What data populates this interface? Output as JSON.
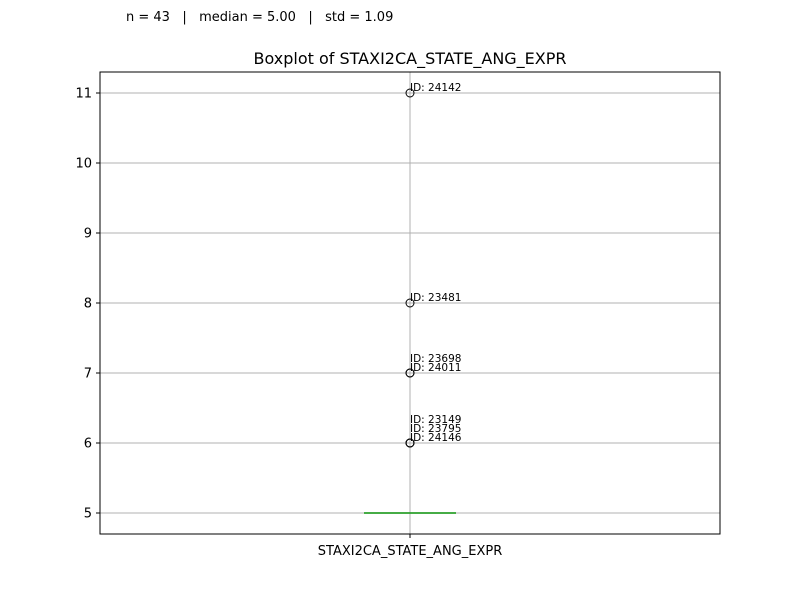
{
  "stats": {
    "text": "n = 43   |   median = 5.00   |   std = 1.09"
  },
  "chart_data": {
    "type": "box",
    "title": "Boxplot of STAXI2CA_STATE_ANG_EXPR",
    "xlabel": "",
    "ylabel": "",
    "categories": [
      "STAXI2CA_STATE_ANG_EXPR"
    ],
    "ylim": [
      4.7,
      11.3
    ],
    "yticks": [
      5,
      6,
      7,
      8,
      9,
      10,
      11
    ],
    "grid": true,
    "box": {
      "q1": 5,
      "median": 5,
      "q3": 5,
      "whisker_low": 5,
      "whisker_high": 5
    },
    "outliers": [
      {
        "value": 11,
        "label": "ID: 24142"
      },
      {
        "value": 8,
        "label": "ID: 23481"
      },
      {
        "value": 7,
        "label": "ID: 24011"
      },
      {
        "value": 7,
        "label": "ID: 23698"
      },
      {
        "value": 6,
        "label": "ID: 24146"
      },
      {
        "value": 6,
        "label": "ID: 23795"
      },
      {
        "value": 6,
        "label": "ID: 23149"
      }
    ],
    "colors": {
      "median": "#2ca02c",
      "grid": "#b0b0b0",
      "axis": "#000000",
      "outlier_edge": "#000000"
    }
  }
}
